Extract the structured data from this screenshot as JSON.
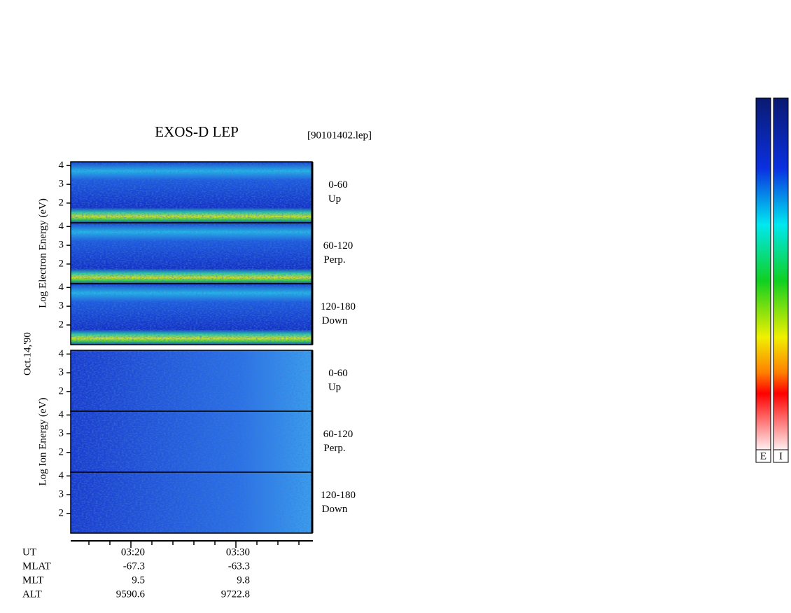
{
  "chart_data": {
    "type": "spectrogram",
    "title": "EXOS-D LEP",
    "file_label": "[90101402.lep]",
    "date_label": "Oct.14,'90",
    "ylim": [
      0.95,
      4.2
    ],
    "yticks": [
      2,
      3,
      4
    ],
    "groups": [
      {
        "ylabel": "Log  Electron  Energy (eV)",
        "species": "electron",
        "panels": [
          {
            "label": "0-60",
            "sublabel": "Up"
          },
          {
            "label": "60-120",
            "sublabel": "Perp."
          },
          {
            "label": "120-180",
            "sublabel": "Down"
          }
        ]
      },
      {
        "ylabel": "Log  Ion  Energy (eV)",
        "species": "ion",
        "panels": [
          {
            "label": "0-60",
            "sublabel": "Up"
          },
          {
            "label": "60-120",
            "sublabel": "Perp."
          },
          {
            "label": "120-180",
            "sublabel": "Down"
          }
        ]
      }
    ],
    "orbit": {
      "row_labels": [
        "UT",
        "MLAT",
        "MLT",
        "ALT"
      ],
      "columns": [
        [
          "03:20",
          -67.3,
          9.5,
          9590.6
        ],
        [
          "03:30",
          -63.3,
          9.8,
          9722.8
        ]
      ]
    },
    "colorbars": [
      "E",
      "I"
    ]
  }
}
